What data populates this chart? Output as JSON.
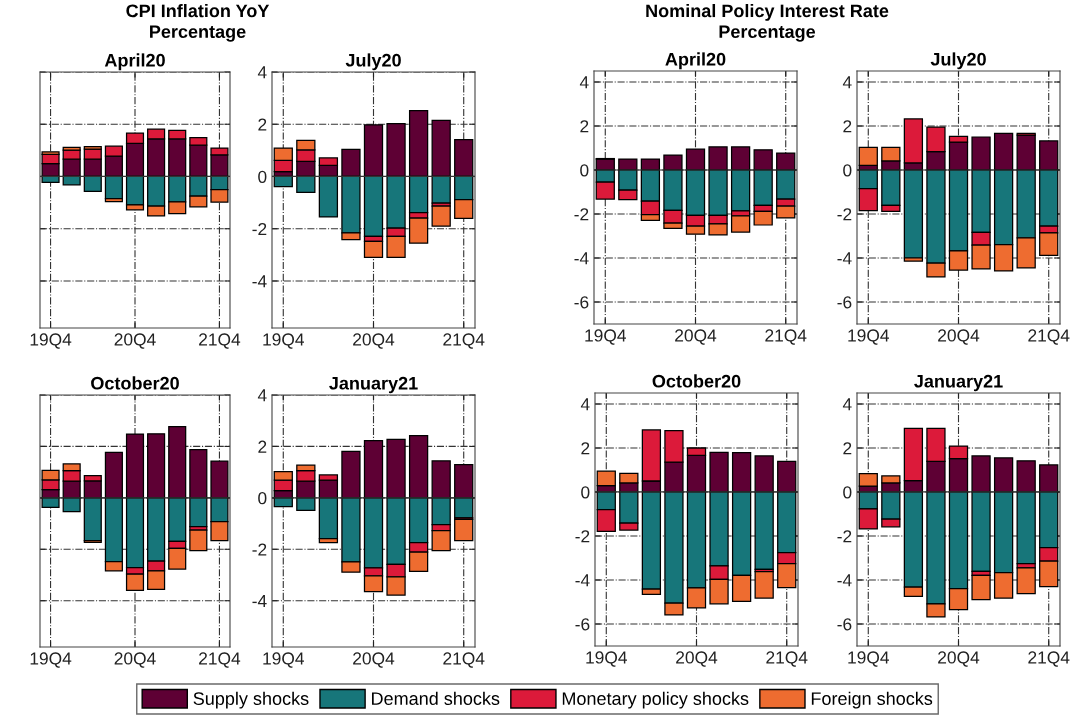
{
  "chart_data": [
    {
      "type": "bar",
      "stacked": true,
      "title": "April20",
      "subtitle": "CPI Inflation YoY\nPercentage",
      "categories": [
        "19Q4",
        null,
        null,
        null,
        "20Q4",
        null,
        null,
        null,
        "21Q4"
      ],
      "ylim": [
        -5.8,
        4
      ],
      "yticks": [
        -4,
        -2,
        0,
        2,
        4
      ],
      "grid": true,
      "legend": "bottom",
      "tick_labels": "x",
      "series": [
        {
          "name": "Supply shocks",
          "color": "#5e0034",
          "values": [
            0.49,
            0.66,
            0.66,
            0.78,
            1.27,
            1.44,
            1.44,
            1.2,
            0.83
          ]
        },
        {
          "name": "Demand shocks",
          "color": "#17767a",
          "values": [
            -0.23,
            -0.32,
            -0.57,
            -0.85,
            -1.09,
            -1.13,
            -0.97,
            -0.75,
            -0.5
          ]
        },
        {
          "name": "Monetary policy shocks",
          "color": "#dc1a3a",
          "values": [
            0.36,
            0.35,
            0.39,
            0.38,
            0.39,
            0.37,
            0.33,
            0.29,
            0.26
          ]
        },
        {
          "name": "Foreign shocks",
          "color": "#ee6c30",
          "values": [
            0.09,
            0.1,
            0.09,
            -0.11,
            -0.19,
            -0.38,
            -0.45,
            -0.41,
            -0.48
          ]
        }
      ]
    },
    {
      "type": "bar",
      "stacked": true,
      "title": "July20",
      "categories": [
        "19Q4",
        null,
        null,
        null,
        "20Q4",
        null,
        null,
        null,
        "21Q4"
      ],
      "ylim": [
        -5.8,
        4
      ],
      "yticks": [
        -4,
        -2,
        0,
        2,
        4
      ],
      "grid": true,
      "series": [
        {
          "color": "#5e0034",
          "values": [
            0.19,
            0.58,
            0.43,
            1.04,
            1.98,
            2.02,
            2.52,
            2.15,
            1.41
          ]
        },
        {
          "color": "#17767a",
          "values": [
            -0.39,
            -0.61,
            -1.55,
            -2.16,
            -2.29,
            -1.98,
            -1.38,
            -1.02,
            -0.89
          ]
        },
        {
          "color": "#dc1a3a",
          "values": [
            0.43,
            0.44,
            0.28,
            0,
            -0.19,
            -0.31,
            -0.21,
            -0.11,
            0
          ]
        },
        {
          "color": "#ee6c30",
          "values": [
            0.47,
            0.36,
            0,
            -0.26,
            -0.62,
            -0.81,
            -0.96,
            -0.77,
            -0.71
          ]
        }
      ]
    },
    {
      "type": "bar",
      "stacked": true,
      "title": "April20",
      "subtitle": "Nominal Policy Interest Rate\nPercentage",
      "categories": [
        "19Q4",
        null,
        null,
        null,
        "20Q4",
        null,
        null,
        null,
        "21Q4"
      ],
      "ylim": [
        -7,
        4.5
      ],
      "yticks": [
        -6,
        -4,
        -2,
        0,
        2,
        4
      ],
      "grid": true,
      "series": [
        {
          "color": "#5e0034",
          "values": [
            0.5,
            0.5,
            0.5,
            0.68,
            0.95,
            1.05,
            1.05,
            0.92,
            0.77
          ]
        },
        {
          "color": "#17767a",
          "values": [
            -0.55,
            -0.92,
            -1.42,
            -1.83,
            -2.06,
            -2.06,
            -1.86,
            -1.61,
            -1.32
          ]
        },
        {
          "color": "#dc1a3a",
          "values": [
            -0.77,
            -0.43,
            -0.61,
            -0.58,
            -0.49,
            -0.39,
            -0.22,
            -0.27,
            -0.32
          ]
        },
        {
          "color": "#ee6c30",
          "values": [
            0.02,
            0,
            -0.26,
            -0.24,
            -0.37,
            -0.5,
            -0.74,
            -0.62,
            -0.54
          ]
        }
      ]
    },
    {
      "type": "bar",
      "stacked": true,
      "title": "July20",
      "categories": [
        "19Q4",
        null,
        null,
        null,
        "20Q4",
        null,
        null,
        null,
        "21Q4"
      ],
      "ylim": [
        -7,
        4.5
      ],
      "yticks": [
        -6,
        -4,
        -2,
        0,
        2,
        4
      ],
      "grid": true,
      "series": [
        {
          "color": "#5e0034",
          "values": [
            0.21,
            0.41,
            0.32,
            0.83,
            1.27,
            1.5,
            1.67,
            1.59,
            1.32
          ]
        },
        {
          "color": "#17767a",
          "values": [
            -0.85,
            -1.61,
            -4.0,
            -4.23,
            -3.68,
            -2.83,
            -3.39,
            -3.08,
            -2.55
          ]
        },
        {
          "color": "#dc1a3a",
          "values": [
            -1.0,
            -0.27,
            2.0,
            1.12,
            0.26,
            -0.58,
            0,
            0.08,
            -0.31
          ]
        },
        {
          "color": "#ee6c30",
          "values": [
            0.82,
            0.62,
            -0.14,
            -0.63,
            -0.87,
            -1.09,
            -1.2,
            -1.37,
            -1.02
          ]
        }
      ]
    },
    {
      "type": "bar",
      "stacked": true,
      "title": "October20",
      "categories": [
        "19Q4",
        null,
        null,
        null,
        "20Q4",
        null,
        null,
        null,
        "21Q4"
      ],
      "ylim": [
        -5.8,
        4
      ],
      "yticks": [
        -4,
        -2,
        0,
        2,
        4
      ],
      "grid": true,
      "tick_labels": "x",
      "series": [
        {
          "color": "#5e0034",
          "values": [
            0.32,
            0.65,
            0.66,
            1.77,
            2.48,
            2.49,
            2.77,
            1.88,
            1.43
          ]
        },
        {
          "color": "#17767a",
          "values": [
            -0.37,
            -0.54,
            -1.66,
            -2.48,
            -2.71,
            -2.46,
            -1.69,
            -1.12,
            -0.92
          ]
        },
        {
          "color": "#dc1a3a",
          "values": [
            0.38,
            0.41,
            0.2,
            0,
            -0.26,
            -0.38,
            -0.27,
            -0.13,
            0
          ]
        },
        {
          "color": "#ee6c30",
          "values": [
            0.37,
            0.26,
            -0.07,
            -0.36,
            -0.63,
            -0.72,
            -0.81,
            -0.8,
            -0.74
          ]
        }
      ]
    },
    {
      "type": "bar",
      "stacked": true,
      "title": "January21",
      "categories": [
        "19Q4",
        null,
        null,
        null,
        "20Q4",
        null,
        null,
        null,
        "21Q4"
      ],
      "ylim": [
        -5.8,
        4
      ],
      "yticks": [
        -4,
        -2,
        0,
        2,
        4
      ],
      "grid": true,
      "series": [
        {
          "color": "#5e0034",
          "values": [
            0.28,
            0.65,
            0.69,
            1.81,
            2.23,
            2.27,
            2.42,
            1.44,
            1.29
          ]
        },
        {
          "color": "#17767a",
          "values": [
            -0.34,
            -0.49,
            -1.59,
            -2.49,
            -2.72,
            -2.59,
            -1.74,
            -1.04,
            -0.78
          ]
        },
        {
          "color": "#dc1a3a",
          "values": [
            0.41,
            0.41,
            0.2,
            0,
            -0.31,
            -0.48,
            -0.37,
            -0.23,
            -0.06
          ]
        },
        {
          "color": "#ee6c30",
          "values": [
            0.33,
            0.21,
            -0.15,
            -0.4,
            -0.62,
            -0.71,
            -0.75,
            -0.78,
            -0.82
          ]
        }
      ]
    },
    {
      "type": "bar",
      "stacked": true,
      "title": "October20",
      "categories": [
        "19Q4",
        null,
        null,
        null,
        "20Q4",
        null,
        null,
        null,
        "21Q4"
      ],
      "ylim": [
        -7,
        4.5
      ],
      "yticks": [
        -6,
        -4,
        -2,
        0,
        2,
        4
      ],
      "grid": true,
      "series": [
        {
          "color": "#5e0034",
          "values": [
            0.29,
            0.41,
            0.5,
            1.36,
            1.67,
            1.8,
            1.79,
            1.64,
            1.39
          ]
        },
        {
          "color": "#17767a",
          "values": [
            -0.8,
            -1.41,
            -4.41,
            -5.05,
            -4.36,
            -3.36,
            -3.79,
            -3.52,
            -2.76
          ]
        },
        {
          "color": "#dc1a3a",
          "values": [
            -0.99,
            -0.32,
            2.32,
            1.43,
            0.33,
            -0.61,
            null,
            -0.1,
            -0.5
          ]
        },
        {
          "color": "#ee6c30",
          "values": [
            0.66,
            0.44,
            -0.24,
            -0.54,
            -0.91,
            -1.11,
            -1.18,
            -1.2,
            -1.09
          ]
        }
      ]
    },
    {
      "type": "bar",
      "stacked": true,
      "title": "January21",
      "categories": [
        "19Q4",
        null,
        null,
        null,
        "20Q4",
        null,
        null,
        null,
        "21Q4"
      ],
      "ylim": [
        -7,
        4.5
      ],
      "yticks": [
        -6,
        -4,
        -2,
        0,
        2,
        4
      ],
      "grid": true,
      "series": [
        {
          "color": "#5e0034",
          "values": [
            0.27,
            0.41,
            0.52,
            1.39,
            1.52,
            1.64,
            1.55,
            1.42,
            1.23
          ]
        },
        {
          "color": "#17767a",
          "values": [
            -0.77,
            -1.23,
            -4.32,
            -5.09,
            -4.39,
            -3.61,
            -3.67,
            -3.26,
            -2.53
          ]
        },
        {
          "color": "#dc1a3a",
          "values": [
            -0.91,
            -0.35,
            2.37,
            1.5,
            0.57,
            -0.18,
            0,
            -0.19,
            -0.61
          ]
        },
        {
          "color": "#ee6c30",
          "values": [
            0.56,
            0.32,
            -0.42,
            -0.59,
            -0.96,
            -1.1,
            -1.15,
            -1.17,
            -1.16
          ]
        }
      ]
    }
  ]
}
